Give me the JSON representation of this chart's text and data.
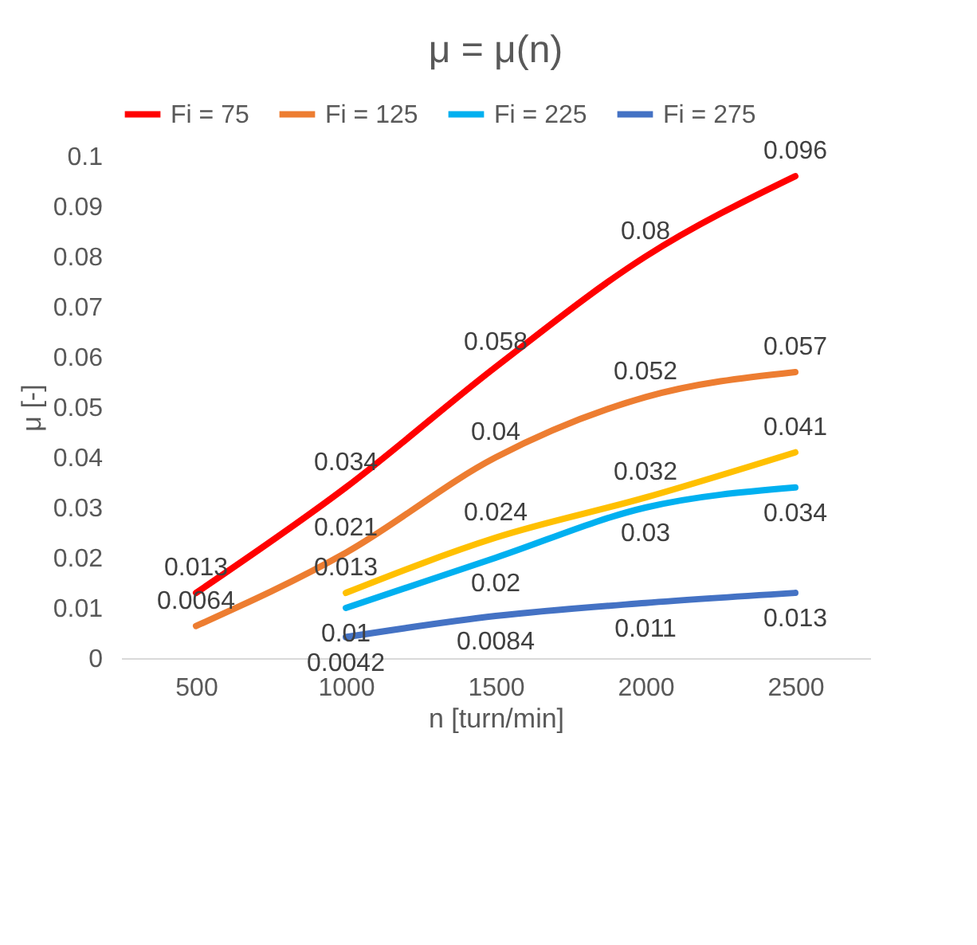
{
  "chart_data": {
    "type": "line",
    "title": "μ = μ(n)",
    "xlabel": "n [turn/min]",
    "ylabel": "μ [-]",
    "categories": [
      "500",
      "1000",
      "1500",
      "2000",
      "2500"
    ],
    "ylim": [
      0,
      0.1
    ],
    "yticks": [
      0,
      0.01,
      0.02,
      0.03,
      0.04,
      0.05,
      0.06,
      0.07,
      0.08,
      0.09,
      0.1
    ],
    "grid": false,
    "legend": "top",
    "data_labels": true,
    "marker": "none",
    "line_style": "solid",
    "series": [
      {
        "name": "Fi = 75",
        "color": "#ff0000",
        "values": [
          0.013,
          0.034,
          0.058,
          0.08,
          0.096
        ]
      },
      {
        "name": "Fi = 125",
        "color": "#ed7d31",
        "values": [
          0.0064,
          0.021,
          0.04,
          0.052,
          0.057
        ]
      },
      {
        "color": "#ffc000",
        "values": [
          null,
          0.013,
          0.024,
          0.032,
          0.041
        ]
      },
      {
        "name": "Fi = 225",
        "color": "#00b0f0",
        "values": [
          null,
          0.01,
          0.02,
          0.03,
          0.034
        ]
      },
      {
        "name": "Fi = 275",
        "color": "#4472c4",
        "values": [
          null,
          0.0042,
          0.0084,
          0.011,
          0.013
        ]
      }
    ]
  }
}
